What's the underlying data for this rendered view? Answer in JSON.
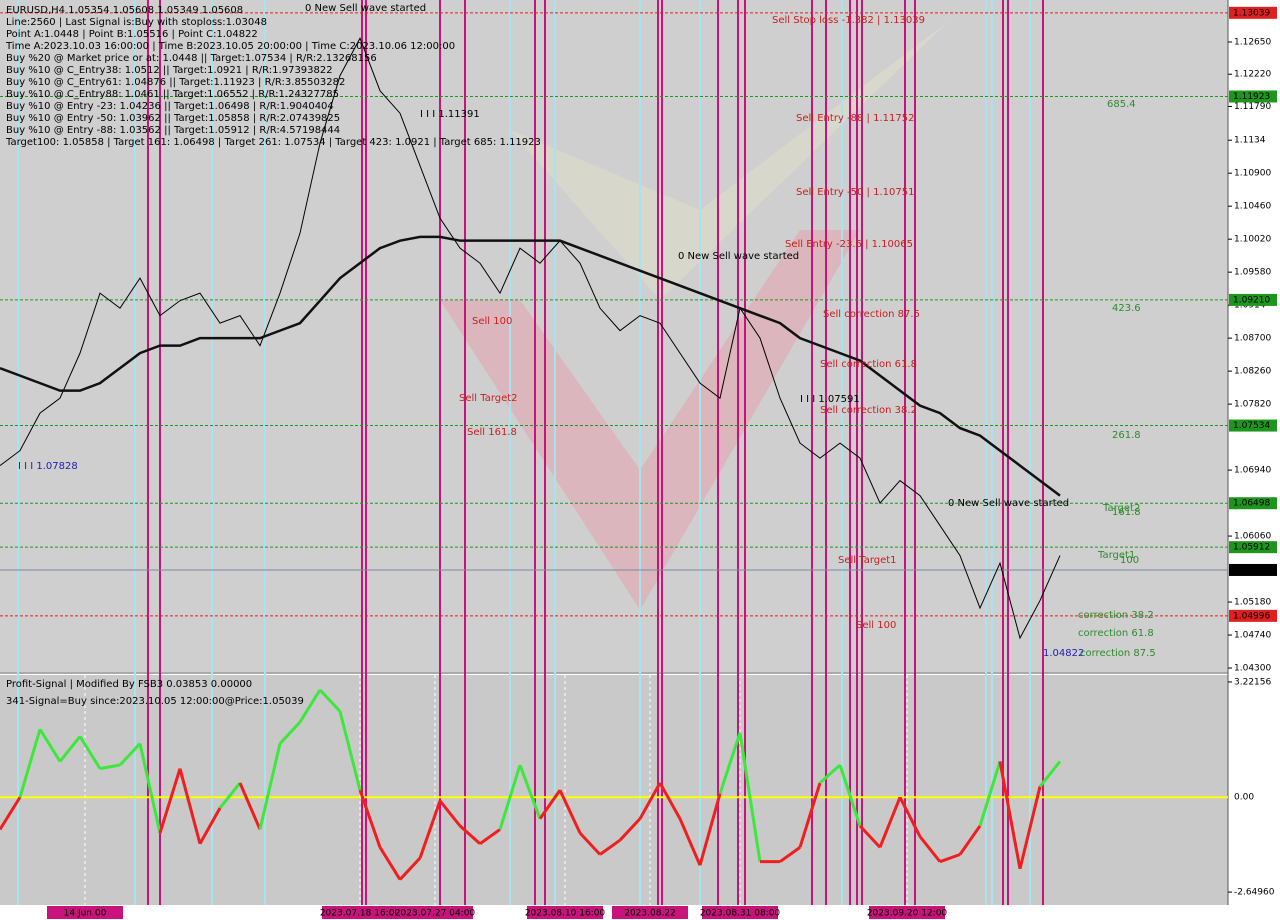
{
  "chart_data": [
    {
      "type": "line",
      "header": [
        "EURUSD,H4 1.05354 1.05608 1.05349 1.05608",
        "Line:2560 | Last Signal is:Buy with stoploss:1.03048",
        "Point A:1.0448 | Point B:1.05516 | Point C:1.04822",
        "Time A:2023.10.03 16:00:00 | Time B:2023.10.05 20:00:00 | Time C:2023.10.06 12:00:00",
        "Buy %20 @ Market price or at: 1.0448 || Target:1.07534 | R/R:2.13268156",
        "Buy %10 @ C_Entry38: 1.0512 || Target:1.0921 | R/R:1.97393822",
        "Buy %10 @ C_Entry61: 1.04876 || Target:1.11923 | R/R:3.85503282",
        "Buy %10 @ C_Entry88: 1.0461 || Target:1.06552 | R/R:1.24327785",
        "Buy %10 @ Entry -23: 1.04236 || Target:1.06498 | R/R:1.9040404",
        "Buy %10 @ Entry -50: 1.03962 || Target:1.05858 | R/R:2.07439825",
        "Buy %10 @ Entry -88: 1.03562 || Target:1.05912 | R/R:4.57198444",
        "Target100: 1.05858 | Target 161: 1.06498 | Target 261: 1.07534 | Target 423: 1.0921 | Target 685: 1.11923"
      ],
      "annotations": [
        {
          "text": "0 New Sell wave started",
          "color": "#000000"
        },
        {
          "text": "Sell Stop loss -1.382 | 1.13039",
          "color": "#c81e1e"
        },
        {
          "text": "685.4",
          "color": "#2e8b2e"
        },
        {
          "text": "I I I 1.11391",
          "color": "#000000"
        },
        {
          "text": "Sell Entry -88 | 1.11752",
          "color": "#c81e1e"
        },
        {
          "text": "Sell Entry -50 | 1.10751",
          "color": "#c81e1e"
        },
        {
          "text": "Sell Entry -23.6 | 1.10065",
          "color": "#c81e1e"
        },
        {
          "text": "0 New Sell wave started",
          "color": "#000000"
        },
        {
          "text": "423.6",
          "color": "#2e8b2e"
        },
        {
          "text": "Sell correction 87.5",
          "color": "#c81e1e"
        },
        {
          "text": "Sell 100",
          "color": "#c81e1e"
        },
        {
          "text": "Sell correction 61.8",
          "color": "#c81e1e"
        },
        {
          "text": "I I I 1.07591",
          "color": "#000000"
        },
        {
          "text": "Sell correction 38.2",
          "color": "#c81e1e"
        },
        {
          "text": "Sell Target2",
          "color": "#c81e1e"
        },
        {
          "text": "Sell 161.8",
          "color": "#c81e1e"
        },
        {
          "text": "261.8",
          "color": "#2e8b2e"
        },
        {
          "text": "I I I 1.07828",
          "color": "#1e1eb4"
        },
        {
          "text": "0 New Sell wave started",
          "color": "#000000"
        },
        {
          "text": "Target2",
          "color": "#2e8b2e"
        },
        {
          "text": "161.8",
          "color": "#2e8b2e"
        },
        {
          "text": "Target1",
          "color": "#2e8b2e"
        },
        {
          "text": "100",
          "color": "#2e8b2e"
        },
        {
          "text": "Sell Target1",
          "color": "#c81e1e"
        },
        {
          "text": "Sell 100",
          "color": "#c81e1e"
        },
        {
          "text": "correction 38.2",
          "color": "#2e8b2e"
        },
        {
          "text": "correction 61.8",
          "color": "#2e8b2e"
        },
        {
          "text": "1.04822",
          "color": "#1e1eb4"
        },
        {
          "text": "correction 87.5",
          "color": "#2e8b2e"
        }
      ],
      "x": [
        0,
        1,
        2,
        3,
        4,
        5,
        6,
        7,
        8,
        9,
        10,
        11,
        12,
        13,
        14,
        15,
        16,
        17,
        18,
        19,
        20,
        21,
        22,
        23,
        24,
        25,
        26,
        27,
        28,
        29,
        30,
        31,
        32,
        33,
        34,
        35,
        36,
        37,
        38,
        39,
        40,
        41,
        42,
        43,
        44,
        45,
        46,
        47,
        48,
        49,
        50,
        51,
        52,
        53
      ],
      "xlim": [
        0,
        61.4
      ],
      "ylim": [
        1.04247,
        1.1321
      ],
      "yticks": [
        {
          "value": 1.1265,
          "label": "1.12650"
        },
        {
          "value": 1.1222,
          "label": "1.12220"
        },
        {
          "value": 1.1179,
          "label": "1.11790"
        },
        1.1134,
        {
          "value": 1.109,
          "label": "1.10900"
        },
        {
          "value": 1.1046,
          "label": "1.10460"
        },
        {
          "value": 1.1002,
          "label": "1.10020"
        },
        {
          "value": 1.0958,
          "label": "1.09580"
        },
        1.0914,
        {
          "value": 1.087,
          "label": "1.08700"
        },
        {
          "value": 1.0826,
          "label": "1.08260"
        },
        {
          "value": 1.0782,
          "label": "1.07820"
        },
        {
          "value": 1.0694,
          "label": "1.06940"
        },
        {
          "value": 1.0606,
          "label": "1.06060"
        },
        {
          "value": 1.0518,
          "label": "1.05180"
        },
        {
          "value": 1.0474,
          "label": "1.04740"
        },
        {
          "value": 1.043,
          "label": "1.04300"
        }
      ],
      "levels": [
        {
          "value": 1.13039,
          "label": "1.13039",
          "color": "#e02020"
        },
        {
          "value": 1.11923,
          "label": "1.11923",
          "color": "#1e961e"
        },
        {
          "value": 1.0921,
          "label": "1.09210",
          "color": "#1e961e"
        },
        {
          "value": 1.07534,
          "label": "1.07534",
          "color": "#1e961e"
        },
        {
          "value": 1.06498,
          "label": "1.06498",
          "color": "#1e961e"
        },
        {
          "value": 1.05912,
          "label": "1.05912",
          "color": "#1e961e"
        },
        {
          "value": 1.05608,
          "label": "1.05608",
          "color": "#000000"
        },
        {
          "value": 1.04996,
          "label": "1.04996",
          "color": "#e02020"
        }
      ],
      "series": [
        {
          "color": "#000000",
          "values": [
            1.07,
            1.072,
            1.077,
            1.079,
            1.085,
            1.093,
            1.091,
            1.095,
            1.09,
            1.092,
            1.093,
            1.089,
            1.09,
            1.086,
            1.093,
            1.101,
            1.113,
            1.122,
            1.127,
            1.12,
            1.117,
            1.11,
            1.103,
            1.099,
            1.097,
            1.093,
            1.099,
            1.097,
            1.1,
            1.097,
            1.091,
            1.088,
            1.09,
            1.089,
            1.085,
            1.081,
            1.079,
            1.091,
            1.087,
            1.079,
            1.073,
            1.071,
            1.073,
            1.071,
            1.065,
            1.068,
            1.066,
            1.062,
            1.058,
            1.051,
            1.057,
            1.047,
            1.052,
            1.058
          ]
        },
        {
          "color": "#111111",
          "values": [
            1.083,
            1.082,
            1.081,
            1.08,
            1.08,
            1.081,
            1.083,
            1.085,
            1.086,
            1.086,
            1.087,
            1.087,
            1.087,
            1.087,
            1.088,
            1.089,
            1.092,
            1.095,
            1.097,
            1.099,
            1.1,
            1.1005,
            1.1005,
            1.1,
            1.1,
            1.1,
            1.1,
            1.1,
            1.1,
            1.099,
            1.098,
            1.097,
            1.096,
            1.095,
            1.094,
            1.093,
            1.092,
            1.091,
            1.09,
            1.089,
            1.087,
            1.086,
            1.085,
            1.084,
            1.082,
            1.08,
            1.078,
            1.077,
            1.075,
            1.074,
            1.072,
            1.07,
            1.068,
            1.066
          ]
        }
      ]
    },
    {
      "type": "oscillator",
      "header": [
        "Profit-Signal | Modified By FSB3 0.03853 0.00000",
        "341-Signal=Buy since:2023.10.05 12:00:00@Price:1.05039"
      ],
      "x": [
        0,
        1,
        2,
        3,
        4,
        5,
        6,
        7,
        8,
        9,
        10,
        11,
        12,
        13,
        14,
        15,
        16,
        17,
        18,
        19,
        20,
        21,
        22,
        23,
        24,
        25,
        26,
        27,
        28,
        29,
        30,
        31,
        32,
        33,
        34,
        35,
        36,
        37,
        38,
        39,
        40,
        41,
        42,
        43,
        44,
        45,
        46,
        47,
        48,
        49,
        50,
        51,
        52,
        53
      ],
      "xlim": [
        0,
        61.4
      ],
      "xticks": [
        {
          "value": 4.25,
          "label": "14 Jun 00"
        },
        {
          "value": 18,
          "label": "2023.07.18 16:00"
        },
        {
          "value": 21.75,
          "label": "2023.07.27 04:00"
        },
        {
          "value": 28.25,
          "label": "2023.08.10 16:00"
        },
        {
          "value": 32.5,
          "label": "2023.08.22"
        },
        {
          "value": 37,
          "label": "2023.08.31 08:00"
        },
        {
          "value": 45.35,
          "label": "2023.09.20 12:00"
        }
      ],
      "ylim": [
        -3.011,
        3.416
      ],
      "yticks": [
        3.22156,
        {
          "value": 0,
          "label": "0.00"
        },
        {
          "value": -2.6496,
          "label": "-2.64960"
        }
      ],
      "baseline_color": "#ffff00",
      "series": [
        {
          "color_up": "#3ce83c",
          "color_down": "#f01e1e",
          "values": [
            -0.9,
            0,
            1.9,
            1.0,
            1.7,
            0.8,
            0.9,
            1.5,
            -1.0,
            0.8,
            -1.3,
            -0.3,
            0.4,
            -0.9,
            1.5,
            2.1,
            3.0,
            2.4,
            0.2,
            -1.4,
            -2.3,
            -1.7,
            -0.1,
            -0.8,
            -1.3,
            -0.9,
            0.9,
            -0.6,
            0.2,
            -1.0,
            -1.6,
            -1.2,
            -0.6,
            0.4,
            -0.6,
            -1.9,
            0.1,
            1.8,
            -1.8,
            -1.8,
            -1.4,
            0.4,
            0.9,
            -0.8,
            -1.4,
            0.0,
            -1.1,
            -1.8,
            -1.6,
            -0.8,
            1.0,
            -2.0,
            0.3,
            1.0
          ]
        }
      ]
    }
  ]
}
